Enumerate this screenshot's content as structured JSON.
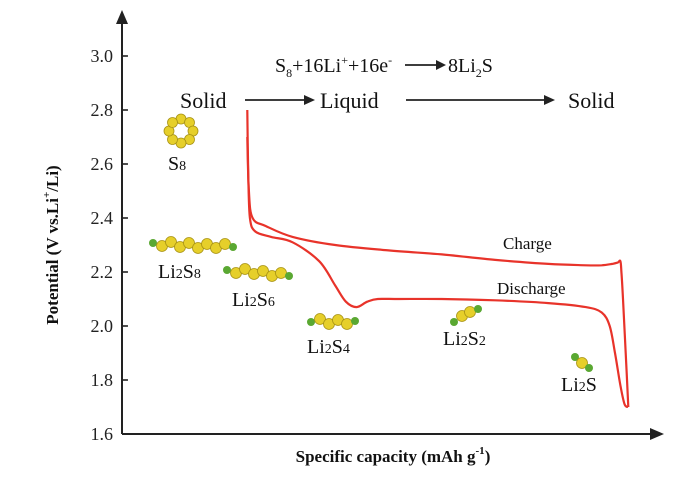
{
  "chart_data": {
    "type": "line",
    "title": "",
    "xlabel": "Specific capacity (mAh g",
    "xlabel_sup": "-1",
    "xlabel_close": ")",
    "ylabel_parts": [
      "Potential (V vs.Li",
      "+",
      "/Li)"
    ],
    "ylim": [
      1.6,
      3.0
    ],
    "yticks": [
      "1.6",
      "1.8",
      "2.0",
      "2.2",
      "2.4",
      "2.6",
      "2.8",
      "3.0"
    ],
    "xlim": [
      0,
      1
    ],
    "grid": false,
    "legend": "none",
    "series": [
      {
        "name": "Discharge",
        "color": "#e8332a",
        "x": [
          0.235,
          0.237,
          0.24,
          0.25,
          0.28,
          0.32,
          0.37,
          0.4,
          0.42,
          0.44,
          0.46,
          0.48,
          0.52,
          0.6,
          0.7,
          0.8,
          0.87,
          0.9,
          0.915,
          0.925,
          0.935,
          0.943,
          0.95
        ],
        "y": [
          2.8,
          2.55,
          2.4,
          2.35,
          2.33,
          2.31,
          2.24,
          2.15,
          2.09,
          2.07,
          2.09,
          2.1,
          2.1,
          2.1,
          2.095,
          2.085,
          2.07,
          2.05,
          2.0,
          1.9,
          1.78,
          1.71,
          1.7
        ]
      },
      {
        "name": "Charge",
        "color": "#e8332a",
        "x": [
          0.95,
          0.945,
          0.94,
          0.937,
          0.935,
          0.93,
          0.92,
          0.9,
          0.87,
          0.8,
          0.7,
          0.6,
          0.5,
          0.4,
          0.32,
          0.27,
          0.245,
          0.238,
          0.235
        ],
        "y": [
          1.7,
          1.9,
          2.1,
          2.2,
          2.24,
          2.235,
          2.23,
          2.225,
          2.225,
          2.23,
          2.245,
          2.265,
          2.28,
          2.3,
          2.33,
          2.37,
          2.4,
          2.5,
          2.7
        ]
      }
    ],
    "annotations": {
      "reaction": {
        "a": "S",
        "a_sub": "8",
        "b": "+16Li",
        "b_sup": "+",
        "c": "+16e",
        "c_sup": "-",
        "d": "8Li",
        "d_sub": "2",
        "e": "S"
      },
      "phase_solid_1": "Solid",
      "phase_liquid": "Liquid",
      "phase_solid_2": "Solid",
      "charge_label": "Charge",
      "discharge_label": "Discharge",
      "species": [
        {
          "main": "S",
          "sub": "8"
        },
        {
          "main": "Li",
          "sub": "2",
          "tail": "S",
          "tail_sub": "8"
        },
        {
          "main": "Li",
          "sub": "2",
          "tail": "S",
          "tail_sub": "6"
        },
        {
          "main": "Li",
          "sub": "2",
          "tail": "S",
          "tail_sub": "4"
        },
        {
          "main": "Li",
          "sub": "2",
          "tail": "S",
          "tail_sub": "2"
        },
        {
          "main": "Li",
          "sub": "2",
          "tail": "S",
          "tail_sub": ""
        }
      ]
    }
  },
  "colors": {
    "curve": "#e8332a",
    "sulfur": "#e6cf2a",
    "lithium": "#5aa832",
    "axis": "#222222"
  },
  "icons": [
    "s8-ring-molecule-icon",
    "li2s8-chain-molecule-icon",
    "li2s6-chain-molecule-icon",
    "li2s4-chain-molecule-icon",
    "li2s2-chain-molecule-icon",
    "li2s-molecule-icon"
  ]
}
